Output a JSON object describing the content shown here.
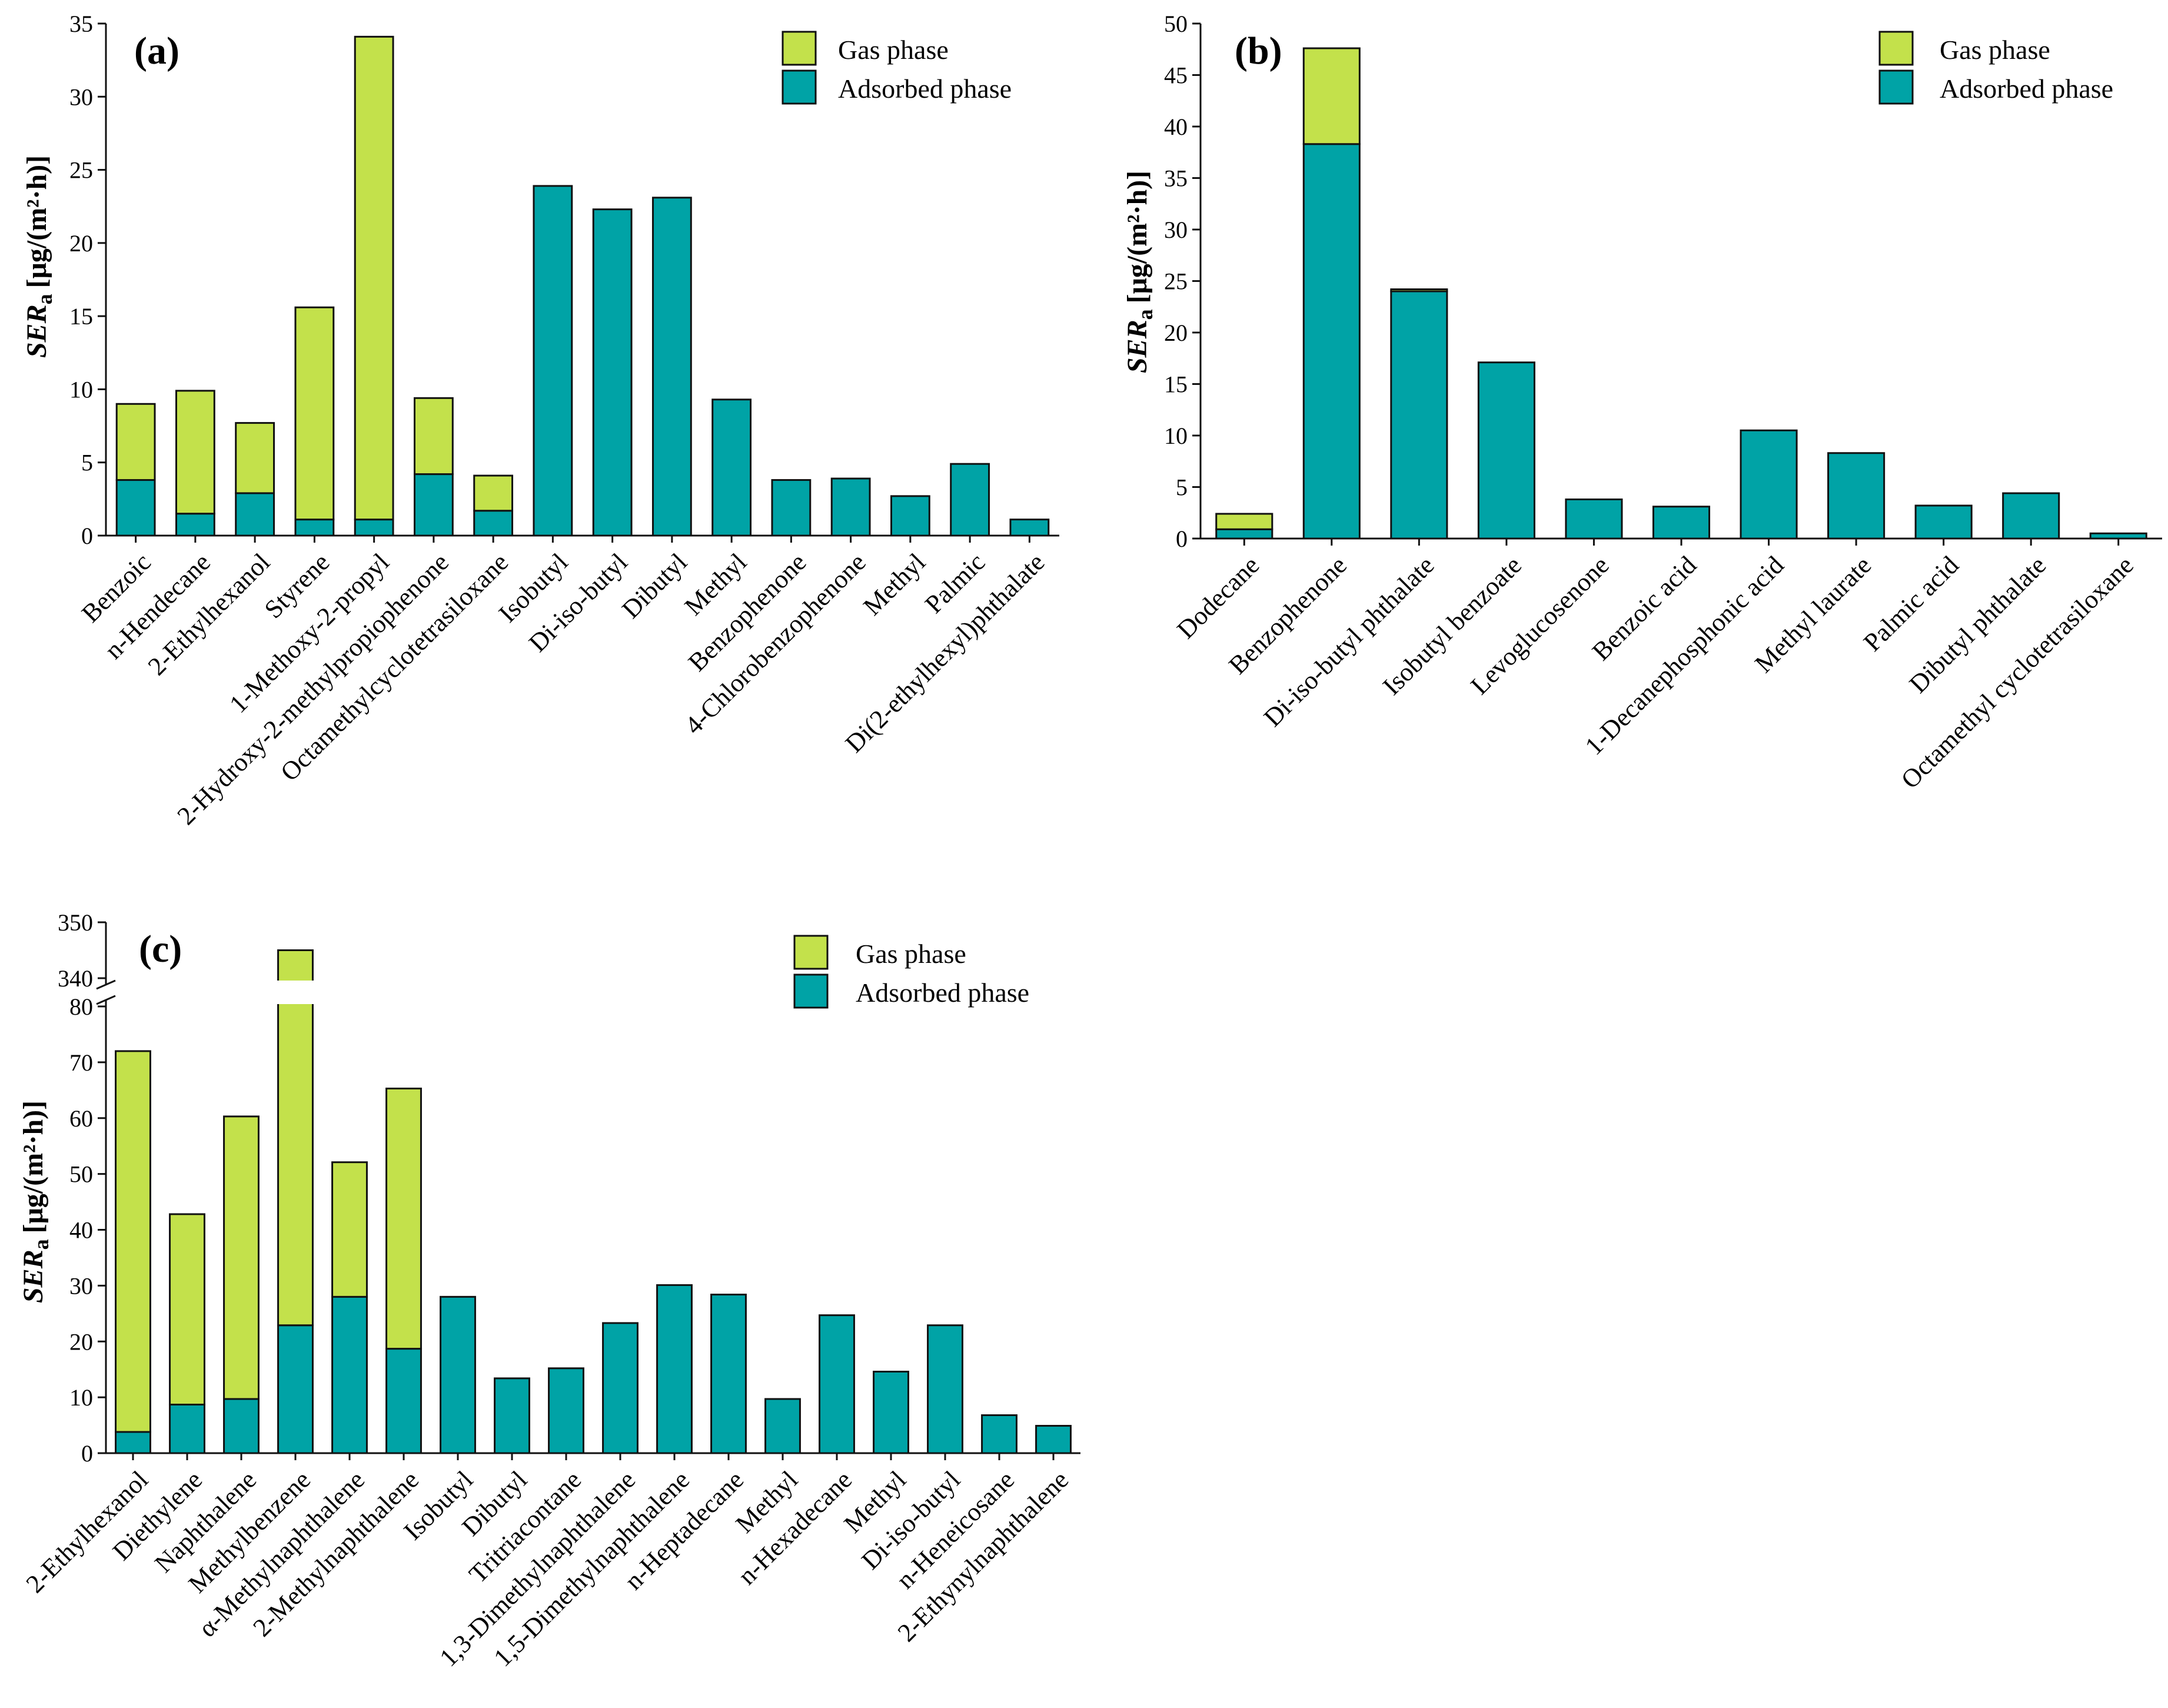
{
  "figure": {
    "ylabel_main": "SER",
    "ylabel_sub": "a",
    "ylabel_unit": "[μg/(m²·h)]",
    "colors": {
      "gas": "#c3e14b",
      "adsorbed": "#00a3a6",
      "stroke": "#111111"
    }
  },
  "chart_data": [
    {
      "panel": "(a)",
      "type": "bar",
      "stacked": true,
      "ylim": [
        0,
        35
      ],
      "yticks": [
        0,
        5,
        10,
        15,
        20,
        25,
        30,
        35
      ],
      "legend": [
        "Gas phase",
        "Adsorbed phase"
      ],
      "legend_position": "top-right",
      "categories": [
        "Benzoic",
        "n-Hendecane",
        "2-Ethylhexanol",
        "Styrene",
        "1-Methoxy-2-propyl",
        "2-Hydroxy-2-methylpropiophenone",
        "Octamethylcyclotetrasiloxane",
        "Isobutyl",
        "Di-iso-butyl",
        "Dibutyl",
        "Methyl",
        "Benzophenone",
        "4-Chlorobenzophenone",
        "Methyl",
        "Palmic",
        "Di(2-ethylhexyl)phthalate"
      ],
      "series": [
        {
          "name": "Adsorbed phase",
          "values": [
            3.8,
            1.5,
            2.9,
            1.1,
            1.1,
            4.2,
            1.7,
            23.9,
            22.3,
            23.1,
            9.3,
            3.8,
            3.9,
            2.7,
            4.9,
            1.1
          ]
        },
        {
          "name": "Gas phase",
          "values": [
            5.2,
            8.4,
            4.8,
            14.5,
            33.0,
            5.2,
            2.4,
            0,
            0,
            0,
            0,
            0,
            0,
            0,
            0,
            0
          ]
        }
      ]
    },
    {
      "panel": "(b)",
      "type": "bar",
      "stacked": true,
      "ylim": [
        0,
        50
      ],
      "yticks": [
        0,
        5,
        10,
        15,
        20,
        25,
        30,
        35,
        40,
        45,
        50
      ],
      "legend": [
        "Gas phase",
        "Adsorbed phase"
      ],
      "legend_position": "top-right",
      "categories": [
        "Dodecane",
        "Benzophenone",
        "Di-iso-butyl phthalate",
        "Isobutyl benzoate",
        "Levoglucosenone",
        "Benzoic acid",
        "1-Decanephosphonic acid",
        "Methyl laurate",
        "Palmic acid",
        "Dibutyl phthalate",
        "Octamethyl cyclotetrasiloxane"
      ],
      "series": [
        {
          "name": "Adsorbed phase",
          "values": [
            0.9,
            38.3,
            24.0,
            17.1,
            3.8,
            3.1,
            10.5,
            8.3,
            3.2,
            4.4,
            0.5
          ]
        },
        {
          "name": "Gas phase",
          "values": [
            1.5,
            9.3,
            0.2,
            0,
            0,
            0,
            0,
            0,
            0,
            0,
            0
          ]
        }
      ]
    },
    {
      "panel": "(c)",
      "type": "bar",
      "stacked": true,
      "ylim": [
        0,
        350
      ],
      "axis_break": [
        80,
        340
      ],
      "yticks": [
        0,
        10,
        20,
        30,
        40,
        50,
        60,
        70,
        80,
        340,
        350
      ],
      "legend": [
        "Gas phase",
        "Adsorbed phase"
      ],
      "legend_position": "top-right",
      "categories": [
        "2-Ethylhexanol",
        "Diethylene",
        "Naphthalene",
        "Methylbenzene",
        "α-Methylnaphthalene",
        "2-Methylnaphthalene",
        "Isobutyl",
        "Dibutyl",
        "Tritriacontane",
        "1,3-Dimethylnaphthalene",
        "1,5-Dimethylnaphthalene",
        "n-Heptadecane",
        "Methyl",
        "n-Hexadecane",
        "Methyl",
        "Di-iso-butyl",
        "n-Heneicosane",
        "2-Ethynylnaphthalene"
      ],
      "series": [
        {
          "name": "Adsorbed phase",
          "values": [
            3.8,
            8.7,
            9.7,
            22.9,
            28.0,
            18.7,
            28.0,
            13.4,
            15.2,
            23.3,
            30.1,
            28.4,
            9.7,
            24.7,
            14.6,
            22.9,
            6.8,
            4.9
          ]
        },
        {
          "name": "Gas phase",
          "values": [
            68.2,
            34.1,
            50.6,
            322.1,
            24.1,
            46.6,
            0,
            0,
            0,
            0,
            0,
            0,
            0,
            0,
            0,
            0,
            0,
            0
          ]
        }
      ]
    }
  ]
}
